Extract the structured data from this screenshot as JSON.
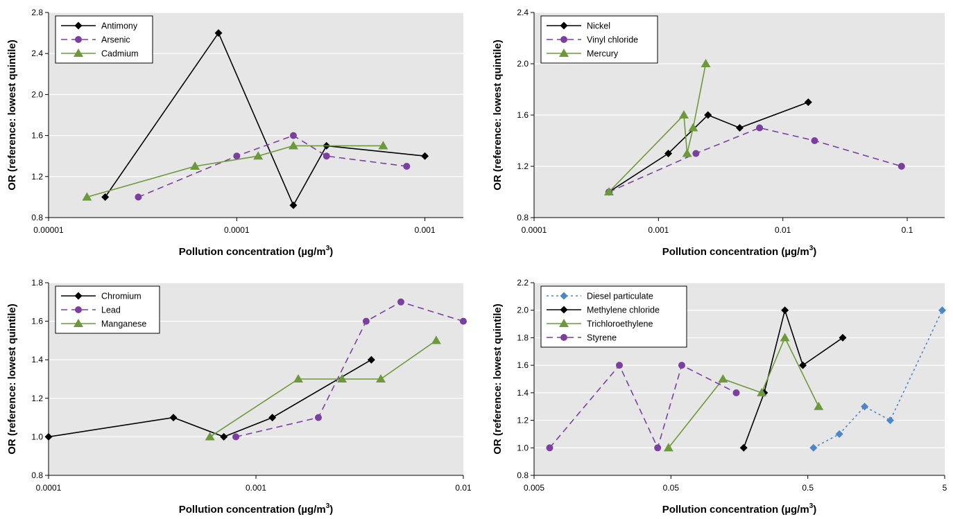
{
  "chart_data": [
    {
      "type": "line",
      "xscale": "log",
      "xlim": [
        1e-05,
        0.0016
      ],
      "ylim": [
        0.8,
        2.8
      ],
      "xticks": [
        1e-05,
        0.0001,
        0.001
      ],
      "xtick_labels": [
        "0.00001",
        "0.0001",
        "0.001"
      ],
      "yticks": [
        0.8,
        1.2,
        1.6,
        2.0,
        2.4,
        2.8
      ],
      "ytick_labels": [
        "0.8",
        "1.2",
        "1.6",
        "2.0",
        "2.4",
        "2.8"
      ],
      "xlabel": "Pollution concentration (µg/m",
      "xlabel_sup": "3",
      "xlabel_end": ")",
      "ylabel": "OR (reference: lowest quintile)",
      "grid": true,
      "legend": "top-left",
      "series": [
        {
          "name": "Antimony",
          "color": "#000000",
          "marker": "diamond",
          "dash": "solid",
          "x": [
            2e-05,
            8e-05,
            0.0002,
            0.0003,
            0.001
          ],
          "y": [
            1.0,
            2.6,
            0.92,
            1.5,
            1.4
          ]
        },
        {
          "name": "Arsenic",
          "color": "#7b3fa0",
          "marker": "circle",
          "dash": "dashed",
          "x": [
            3e-05,
            0.0001,
            0.0002,
            0.0003,
            0.0008
          ],
          "y": [
            1.0,
            1.4,
            1.6,
            1.4,
            1.3
          ]
        },
        {
          "name": "Cadmium",
          "color": "#6c9a3a",
          "marker": "triangle",
          "dash": "solid",
          "x": [
            1.6e-05,
            6e-05,
            0.00013,
            0.0002,
            0.0006
          ],
          "y": [
            1.0,
            1.3,
            1.4,
            1.5,
            1.5
          ]
        }
      ]
    },
    {
      "type": "line",
      "xscale": "log",
      "xlim": [
        0.0001,
        0.2
      ],
      "ylim": [
        0.8,
        2.4
      ],
      "xticks": [
        0.0001,
        0.001,
        0.01,
        0.1
      ],
      "xtick_labels": [
        "0.0001",
        "0.001",
        "0.01",
        "0.1"
      ],
      "yticks": [
        0.8,
        1.2,
        1.6,
        2.0,
        2.4
      ],
      "ytick_labels": [
        "0.8",
        "1.2",
        "1.6",
        "2.0",
        "2.4"
      ],
      "xlabel": "Pollution concentration (µg/m",
      "xlabel_sup": "3",
      "xlabel_end": ")",
      "ylabel": "OR (reference: lowest quintile)",
      "grid": true,
      "legend": "top-left",
      "series": [
        {
          "name": "Nickel",
          "color": "#000000",
          "marker": "diamond",
          "dash": "solid",
          "x": [
            0.0004,
            0.0012,
            0.0025,
            0.0045,
            0.016
          ],
          "y": [
            1.0,
            1.3,
            1.6,
            1.5,
            1.7
          ]
        },
        {
          "name": "Vinyl chloride",
          "color": "#7b3fa0",
          "marker": "circle",
          "dash": "dashed",
          "x": [
            0.0004,
            0.002,
            0.0065,
            0.018,
            0.09
          ],
          "y": [
            1.0,
            1.3,
            1.5,
            1.4,
            1.2
          ]
        },
        {
          "name": "Mercury",
          "color": "#6c9a3a",
          "marker": "triangle",
          "dash": "solid",
          "x": [
            0.0004,
            0.0016,
            0.0017,
            0.0019,
            0.0024
          ],
          "y": [
            1.0,
            1.6,
            1.3,
            1.5,
            2.0
          ]
        }
      ]
    },
    {
      "type": "line",
      "xscale": "log",
      "xlim": [
        0.0001,
        0.01
      ],
      "ylim": [
        0.8,
        1.8
      ],
      "xticks": [
        0.0001,
        0.001,
        0.01
      ],
      "xtick_labels": [
        "0.0001",
        "0.001",
        "0.01"
      ],
      "yticks": [
        0.8,
        1.0,
        1.2,
        1.4,
        1.6,
        1.8
      ],
      "ytick_labels": [
        "0.8",
        "1.0",
        "1.2",
        "1.4",
        "1.6",
        "1.8"
      ],
      "xlabel": "Pollution concentration (µg/m",
      "xlabel_sup": "3",
      "xlabel_end": ")",
      "ylabel": "OR (reference: lowest quintile)",
      "grid": true,
      "legend": "top-left",
      "series": [
        {
          "name": "Chromium",
          "color": "#000000",
          "marker": "diamond",
          "dash": "solid",
          "x": [
            0.0001,
            0.0004,
            0.0007,
            0.0012,
            0.0036
          ],
          "y": [
            1.0,
            1.1,
            1.0,
            1.1,
            1.4
          ]
        },
        {
          "name": "Lead",
          "color": "#7b3fa0",
          "marker": "circle",
          "dash": "dashed",
          "x": [
            0.0008,
            0.002,
            0.0034,
            0.005,
            0.01
          ],
          "y": [
            1.0,
            1.1,
            1.6,
            1.7,
            1.6
          ]
        },
        {
          "name": "Manganese",
          "color": "#6c9a3a",
          "marker": "triangle",
          "dash": "solid",
          "x": [
            0.0006,
            0.0016,
            0.0026,
            0.004,
            0.0074
          ],
          "y": [
            1.0,
            1.3,
            1.3,
            1.3,
            1.5
          ]
        }
      ]
    },
    {
      "type": "line",
      "xscale": "log",
      "xlim": [
        0.005,
        5
      ],
      "ylim": [
        0.8,
        2.2
      ],
      "xticks": [
        0.005,
        0.05,
        0.5,
        5
      ],
      "xtick_labels": [
        "0.005",
        "0.05",
        "0.5",
        "5"
      ],
      "yticks": [
        0.8,
        1.0,
        1.2,
        1.4,
        1.6,
        1.8,
        2.0,
        2.2
      ],
      "ytick_labels": [
        "0.8",
        "1.0",
        "1.2",
        "1.4",
        "1.6",
        "1.8",
        "2.0",
        "2.2"
      ],
      "xlabel": "Pollution concentration (µg/m",
      "xlabel_sup": "3",
      "xlabel_end": ")",
      "ylabel": "OR (reference: lowest quintile)",
      "grid": true,
      "legend": "top-left",
      "series": [
        {
          "name": "Diesel particulate",
          "color": "#4a86c8",
          "marker": "diamond",
          "dash": "dotted",
          "x": [
            0.55,
            0.85,
            1.3,
            2.0,
            4.8
          ],
          "y": [
            1.0,
            1.1,
            1.3,
            1.2,
            2.0
          ]
        },
        {
          "name": "Methylene chloride",
          "color": "#000000",
          "marker": "diamond",
          "dash": "solid",
          "x": [
            0.17,
            0.24,
            0.34,
            0.46,
            0.9
          ],
          "y": [
            1.0,
            1.4,
            2.0,
            1.6,
            1.8
          ]
        },
        {
          "name": "Trichloroethylene",
          "color": "#6c9a3a",
          "marker": "triangle",
          "dash": "solid",
          "x": [
            0.048,
            0.12,
            0.23,
            0.34,
            0.6
          ],
          "y": [
            1.0,
            1.5,
            1.4,
            1.8,
            1.3
          ]
        },
        {
          "name": "Styrene",
          "color": "#7b3fa0",
          "marker": "circle",
          "dash": "dashed",
          "x": [
            0.0065,
            0.021,
            0.04,
            0.06,
            0.15
          ],
          "y": [
            1.0,
            1.6,
            1.0,
            1.6,
            1.4
          ]
        }
      ]
    }
  ]
}
